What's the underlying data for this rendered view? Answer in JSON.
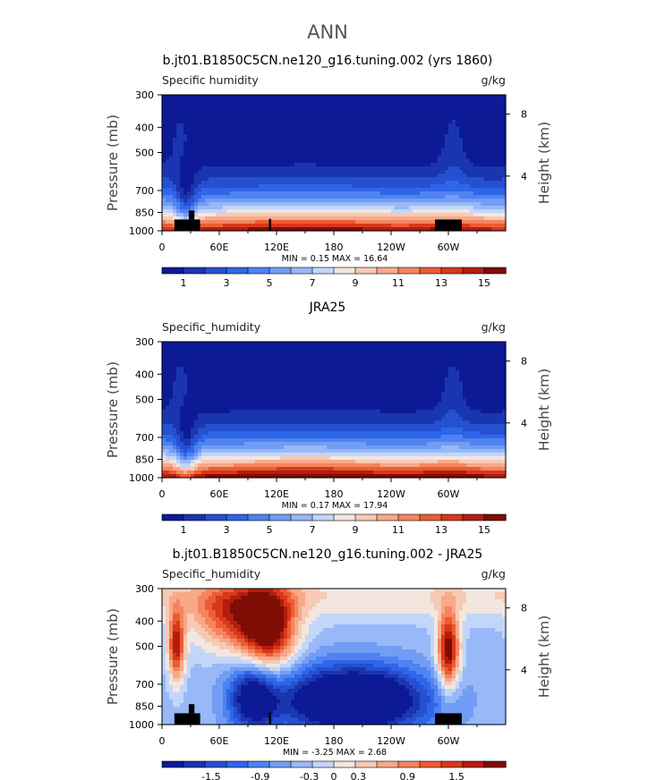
{
  "figure": {
    "title": "ANN"
  },
  "axis_labels": {
    "pressure_ticks": [
      "300",
      "400",
      "500",
      "700",
      "850",
      "1000"
    ],
    "height_ticks": [
      "8",
      "4"
    ],
    "lon_ticks": [
      "0",
      "60E",
      "120E",
      "180",
      "120W",
      "60W"
    ]
  },
  "chart_data": [
    {
      "type": "heatmap",
      "title": "b.jt01.B1850C5CN.ne120_g16.tuning.002 (yrs 1860)",
      "variable_label": "Specific humidity",
      "units": "g/kg",
      "ylabel": "Pressure (mb)",
      "ylabel_right": "Height (km)",
      "ylim": [
        1000,
        300
      ],
      "xlim": [
        0,
        360
      ],
      "min_max": "MIN =    0.15   MAX =   16.64",
      "colorbar_labels": [
        "1",
        "3",
        "5",
        "7",
        "9",
        "11",
        "13",
        "15"
      ],
      "colorbar_range": [
        0,
        16
      ]
    },
    {
      "type": "heatmap",
      "title": "JRA25",
      "variable_label": "Specific_humidity",
      "units": "g/kg",
      "ylabel": "Pressure (mb)",
      "ylabel_right": "Height (km)",
      "ylim": [
        1000,
        300
      ],
      "xlim": [
        0,
        360
      ],
      "min_max": "MIN =    0.17   MAX =   17.94",
      "colorbar_labels": [
        "1",
        "3",
        "5",
        "7",
        "9",
        "11",
        "13",
        "15"
      ],
      "colorbar_range": [
        0,
        16
      ]
    },
    {
      "type": "heatmap",
      "title": "b.jt01.B1850C5CN.ne120_g16.tuning.002 - JRA25",
      "variable_label": "Specific_humidity",
      "units": "g/kg",
      "ylabel": "Pressure (mb)",
      "ylabel_right": "Height (km)",
      "ylim": [
        1000,
        300
      ],
      "xlim": [
        0,
        360
      ],
      "min_max": "MIN =   -3.25   MAX =    2.68",
      "colorbar_labels": [
        "-1.5",
        "-0.9",
        "-0.3",
        "0",
        "0.3",
        "0.9",
        "1.5"
      ],
      "colorbar_range": [
        -2.1,
        2.1
      ]
    }
  ],
  "colormap": [
    "#0d1a96",
    "#1a35b0",
    "#2550cf",
    "#2f66e8",
    "#4f82f2",
    "#729df5",
    "#98b8f7",
    "#c2d6fa",
    "#f2e6de",
    "#f8c9b4",
    "#f7a988",
    "#f4855e",
    "#ec5c33",
    "#d8381c",
    "#b31d0e",
    "#800d05"
  ]
}
